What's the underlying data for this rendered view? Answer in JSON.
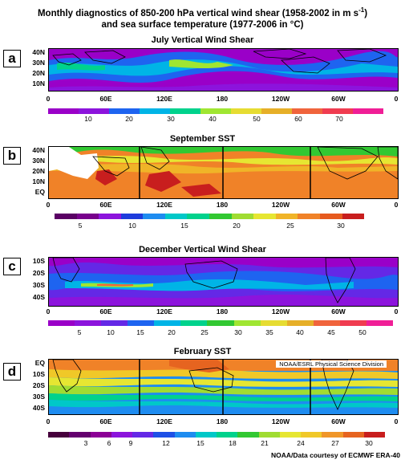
{
  "title_line1": "Monthly diagnostics of 850-200 hPa vertical wind shear (1958-2002 in m s",
  "title_sup": "-1",
  "title_line1_end": ")",
  "title_line2": "and sea surface temperature (1977-2006 in °C)",
  "credit": "NOAA/Data courtesy of ECMWF ERA-40",
  "lon_labels": [
    "0",
    "60E",
    "120E",
    "180",
    "120W",
    "60W",
    "0"
  ],
  "panels": [
    {
      "letter": "a",
      "title": "July Vertical Wind Shear",
      "lat_labels": [
        "40N",
        "30N",
        "20N",
        "10N"
      ],
      "colors": [
        "#9a00c8",
        "#8c14dc",
        "#1e64f0",
        "#00b4e6",
        "#00d28c",
        "#a0e632",
        "#e6dc32",
        "#e6af28",
        "#f0643c",
        "#f03c50",
        "#f01e96"
      ],
      "bar_labels": [
        "10",
        "20",
        "30",
        "40",
        "50",
        "60",
        "70"
      ],
      "noaa": ""
    },
    {
      "letter": "b",
      "title": "September SST",
      "lat_labels": [
        "40N",
        "30N",
        "20N",
        "10N",
        "EQ"
      ],
      "colors": [
        "#5a0064",
        "#78008c",
        "#8c14dc",
        "#1e3cdc",
        "#1e8cf0",
        "#00c8c8",
        "#00d28c",
        "#32c832",
        "#a0dc32",
        "#e6e632",
        "#f0b428",
        "#f08228",
        "#e65a1e",
        "#c81e1e"
      ],
      "bar_labels": [
        "5",
        "10",
        "15",
        "20",
        "25",
        "30"
      ],
      "noaa": ""
    },
    {
      "letter": "c",
      "title": "December Vertical Wind Shear",
      "lat_labels": [
        "10S",
        "20S",
        "30S",
        "40S"
      ],
      "colors": [
        "#9a00c8",
        "#8c14dc",
        "#6428e6",
        "#1e64f0",
        "#00b4e6",
        "#00d28c",
        "#32c832",
        "#a0e632",
        "#e6dc32",
        "#e6af28",
        "#f0643c",
        "#f03c50",
        "#f01e96"
      ],
      "bar_labels": [
        "5",
        "10",
        "15",
        "20",
        "25",
        "30",
        "35",
        "40",
        "45",
        "50"
      ],
      "noaa": ""
    },
    {
      "letter": "d",
      "title": "February SST",
      "lat_labels": [
        "EQ",
        "10S",
        "20S",
        "30S",
        "40S"
      ],
      "colors": [
        "#46003c",
        "#64006e",
        "#8c0096",
        "#8c14dc",
        "#6428e6",
        "#1e50e6",
        "#1e8cf0",
        "#00c8c8",
        "#00d28c",
        "#32c832",
        "#a0dc32",
        "#e6e632",
        "#f0c828",
        "#f09628",
        "#e66420",
        "#c81e1e"
      ],
      "bar_labels": [
        "3",
        "6",
        "9",
        "12",
        "15",
        "18",
        "21",
        "24",
        "27",
        "30"
      ],
      "noaa": "NOAA/ESRL Physical Science Division"
    }
  ]
}
